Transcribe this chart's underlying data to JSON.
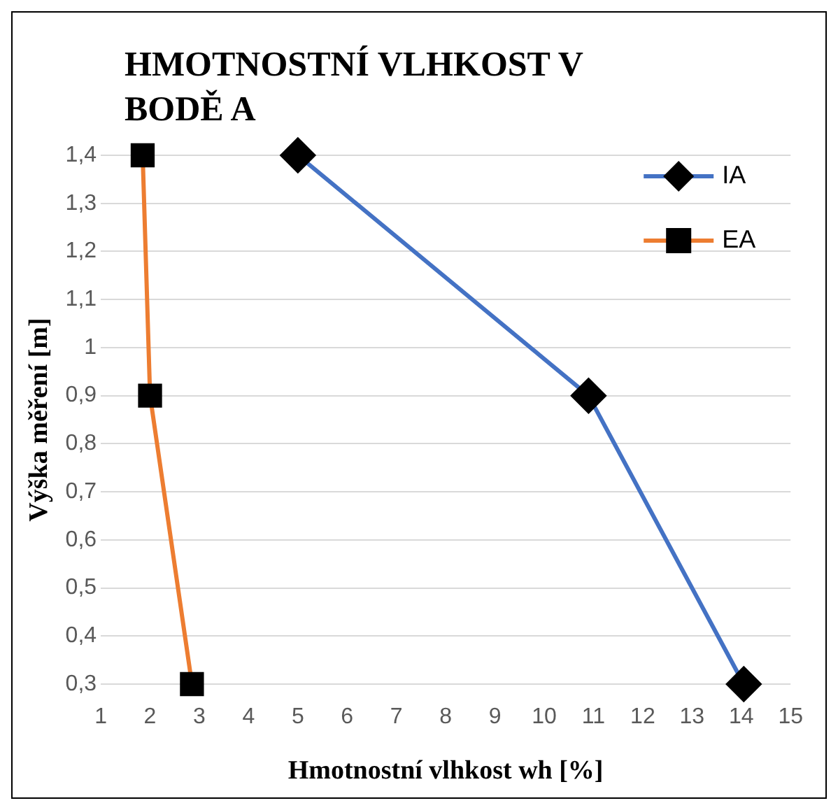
{
  "chart_data": {
    "type": "line",
    "title": "HMOTNOSTNÍ VLHKOST V BODĚ A",
    "xlabel": "Hmotnostní vlhkost wh [%]",
    "ylabel": "Výška měření [m]",
    "xlim": [
      1,
      15
    ],
    "xticks": [
      1,
      2,
      3,
      4,
      5,
      6,
      7,
      8,
      9,
      10,
      11,
      12,
      13,
      14,
      15
    ],
    "ylim": [
      0.3,
      1.4
    ],
    "yticks": [
      {
        "value": 0.3,
        "label": "0,3"
      },
      {
        "value": 0.4,
        "label": "0,4"
      },
      {
        "value": 0.5,
        "label": "0,5"
      },
      {
        "value": 0.6,
        "label": "0,6"
      },
      {
        "value": 0.7,
        "label": "0,7"
      },
      {
        "value": 0.8,
        "label": "0,8"
      },
      {
        "value": 0.9,
        "label": "0,9"
      },
      {
        "value": 1,
        "label": "1"
      },
      {
        "value": 1.1,
        "label": "1,1"
      },
      {
        "value": 1.2,
        "label": "1,2"
      },
      {
        "value": 1.3,
        "label": "1,3"
      },
      {
        "value": 1.4,
        "label": "1,4"
      }
    ],
    "grid": "y",
    "legend": "top right",
    "line_style": "solid",
    "series": [
      {
        "name": "IA",
        "color": "#4472c4",
        "marker": "diamond",
        "x": [
          5,
          10.9,
          14.05
        ],
        "values": [
          1.4,
          0.9,
          0.3
        ]
      },
      {
        "name": "EA",
        "color": "#ed7d31",
        "marker": "square",
        "x": [
          1.85,
          2,
          2.85
        ],
        "values": [
          1.4,
          0.9,
          0.3
        ]
      }
    ]
  }
}
